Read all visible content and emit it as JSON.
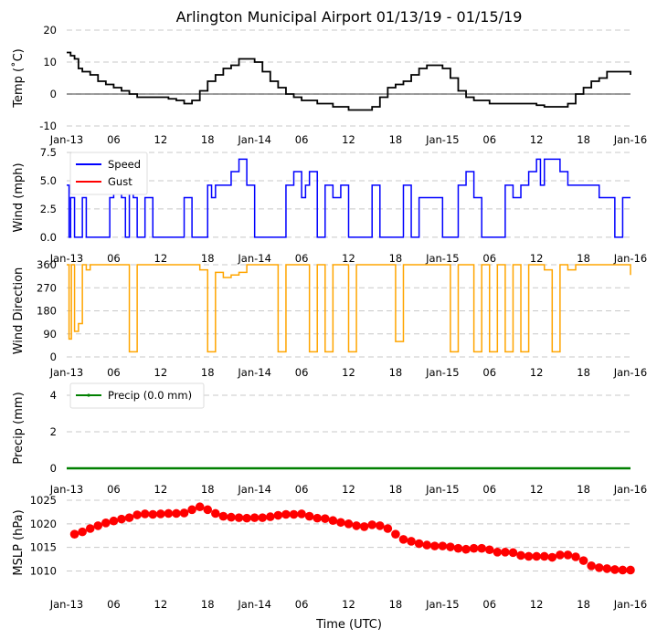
{
  "figure": {
    "title": "Arlington Municipal Airport 01/13/19 - 01/15/19",
    "xlabel": "Time (UTC)",
    "x_ticks": [
      "Jan-13",
      "06",
      "12",
      "18",
      "Jan-14",
      "06",
      "12",
      "18",
      "Jan-15",
      "06",
      "12",
      "18",
      "Jan-16"
    ],
    "x_range_hours": [
      0,
      72
    ]
  },
  "chart_data": [
    {
      "id": "temp",
      "type": "line",
      "ylabel": "Temp ($^\\circ$C)",
      "ylabel_display": "Temp (˚C)",
      "ylim": [
        -10,
        20
      ],
      "yticks": [
        -10,
        0,
        10,
        20
      ],
      "grid": true,
      "zero_line": true,
      "color": "#000000",
      "series": [
        {
          "name": "Temperature",
          "x": [
            0,
            0.5,
            1,
            1.5,
            2,
            3,
            4,
            5,
            6,
            7,
            8,
            9,
            10,
            11,
            12,
            13,
            14,
            15,
            16,
            17,
            18,
            19,
            20,
            21,
            22,
            23,
            24,
            25,
            26,
            27,
            28,
            29,
            30,
            31,
            32,
            33,
            34,
            35,
            36,
            37,
            38,
            39,
            40,
            41,
            42,
            43,
            44,
            45,
            46,
            47,
            48,
            49,
            50,
            51,
            52,
            53,
            54,
            55,
            56,
            57,
            58,
            59,
            60,
            61,
            62,
            63,
            64,
            65,
            66,
            67,
            68,
            69,
            70,
            71,
            72
          ],
          "values": [
            13,
            12,
            11,
            8,
            7,
            6,
            4,
            3,
            2,
            1,
            0,
            -1,
            -1,
            -1,
            -1,
            -1.5,
            -2,
            -3,
            -2,
            1,
            4,
            6,
            8,
            9,
            11,
            11,
            10,
            7,
            4,
            2,
            0,
            -1,
            -2,
            -2,
            -3,
            -3,
            -4,
            -4,
            -5,
            -5,
            -5,
            -4,
            -1,
            2,
            3,
            4,
            6,
            8,
            9,
            9,
            8,
            5,
            1,
            -1,
            -2,
            -2,
            -3,
            -3,
            -3,
            -3,
            -3,
            -3,
            -3.5,
            -4,
            -4,
            -4,
            -3,
            0,
            2,
            4,
            5,
            7,
            7,
            7,
            6
          ]
        }
      ]
    },
    {
      "id": "wind",
      "type": "line",
      "ylabel": "Wind (mph)",
      "ylim": [
        -0.5,
        7.5
      ],
      "yticks": [
        0.0,
        2.5,
        5.0,
        7.5
      ],
      "ytick_labels": [
        "0.0",
        "2.5",
        "5.0",
        "7.5"
      ],
      "grid": true,
      "legend": {
        "placement": "top-left",
        "entries": [
          {
            "label": "Speed",
            "color": "#0000ff"
          },
          {
            "label": "Gust",
            "color": "#ff0000"
          }
        ]
      },
      "series": [
        {
          "name": "Speed",
          "color": "#0000ff",
          "x": [
            0,
            0.3,
            0.5,
            1,
            1.5,
            2,
            2.5,
            3,
            3.5,
            4,
            4.5,
            5,
            5.5,
            6,
            6.5,
            7,
            7.5,
            8,
            8.5,
            9,
            9.5,
            10,
            11,
            12,
            13,
            14,
            15,
            16,
            17,
            18,
            18.5,
            19,
            20,
            21,
            22,
            23,
            24,
            24.5,
            25,
            26,
            27,
            28,
            29,
            30,
            30.5,
            31,
            32,
            33,
            34,
            35,
            36,
            37,
            38,
            39,
            40,
            41,
            42,
            43,
            44,
            45,
            46,
            47,
            48,
            49,
            50,
            51,
            52,
            53,
            54,
            55,
            56,
            57,
            58,
            59,
            60,
            60.5,
            61,
            62,
            63,
            64,
            65,
            66,
            67,
            68,
            69,
            70,
            71,
            72
          ],
          "values": [
            4.6,
            0,
            3.5,
            0,
            0,
            3.5,
            0,
            0,
            0,
            0,
            0,
            0,
            3.5,
            4.6,
            5.8,
            3.5,
            0,
            4.6,
            3.5,
            0,
            0,
            3.5,
            0,
            0,
            0,
            0,
            3.5,
            0,
            0,
            4.6,
            3.5,
            4.6,
            4.6,
            5.8,
            6.9,
            4.6,
            0,
            0,
            0,
            0,
            0,
            4.6,
            5.8,
            3.5,
            4.6,
            5.8,
            0,
            4.6,
            3.5,
            4.6,
            0,
            0,
            0,
            4.6,
            0,
            0,
            0,
            4.6,
            0,
            3.5,
            3.5,
            3.5,
            0,
            0,
            4.6,
            5.8,
            3.5,
            0,
            0,
            0,
            4.6,
            3.5,
            4.6,
            5.8,
            6.9,
            4.6,
            6.9,
            6.9,
            5.8,
            4.6,
            4.6,
            4.6,
            4.6,
            3.5,
            3.5,
            0,
            3.5,
            3.5
          ]
        },
        {
          "name": "Gust",
          "color": "#ff0000",
          "x": [],
          "values": []
        }
      ]
    },
    {
      "id": "direction",
      "type": "line",
      "ylabel": "Wind Direction",
      "ylim": [
        0,
        360
      ],
      "yticks": [
        0,
        90,
        180,
        270,
        360
      ],
      "grid": true,
      "color": "#ffa500",
      "series": [
        {
          "name": "Direction",
          "x": [
            0,
            0.3,
            0.6,
            1,
            1.5,
            2,
            2.5,
            3,
            4,
            5,
            6,
            7,
            8,
            9,
            10,
            11,
            12,
            13,
            14,
            15,
            16,
            17,
            18,
            19,
            20,
            21,
            22,
            23,
            24,
            25,
            26,
            27,
            28,
            29,
            30,
            31,
            32,
            33,
            34,
            35,
            36,
            37,
            38,
            39,
            40,
            41,
            42,
            43,
            44,
            45,
            46,
            47,
            48,
            49,
            50,
            51,
            52,
            53,
            54,
            55,
            56,
            57,
            58,
            59,
            60,
            61,
            62,
            63,
            64,
            65,
            66,
            67,
            68,
            69,
            70,
            71,
            72
          ],
          "values": [
            360,
            70,
            360,
            100,
            130,
            360,
            340,
            360,
            360,
            360,
            360,
            360,
            20,
            360,
            360,
            360,
            360,
            360,
            360,
            360,
            360,
            340,
            20,
            330,
            310,
            320,
            330,
            360,
            360,
            360,
            360,
            20,
            360,
            360,
            360,
            20,
            360,
            20,
            360,
            360,
            20,
            360,
            360,
            360,
            360,
            360,
            60,
            360,
            360,
            360,
            360,
            360,
            360,
            20,
            360,
            360,
            20,
            360,
            20,
            360,
            20,
            360,
            20,
            360,
            360,
            340,
            20,
            360,
            340,
            360,
            360,
            360,
            360,
            360,
            360,
            360,
            320
          ]
        }
      ]
    },
    {
      "id": "precip",
      "type": "line",
      "ylabel": "Precip (mm)",
      "ylim": [
        -0.1,
        4.5
      ],
      "yticks": [
        0,
        2,
        4
      ],
      "grid": true,
      "legend": {
        "placement": "top-left",
        "entries": [
          {
            "label": "Precip (0.0 mm)",
            "color": "#008000"
          }
        ]
      },
      "series": [
        {
          "name": "Precip (0.0 mm)",
          "color": "#008000",
          "x": [
            0,
            6,
            12,
            18,
            24,
            30,
            36,
            42,
            48,
            54,
            60,
            66,
            72
          ],
          "values": [
            0,
            0,
            0,
            0,
            0,
            0,
            0,
            0,
            0,
            0,
            0,
            0,
            0
          ]
        }
      ]
    },
    {
      "id": "mslp",
      "type": "scatter",
      "ylabel": "MSLP (hPa)",
      "ylim": [
        1007,
        1025
      ],
      "yticks": [
        1010,
        1015,
        1020,
        1025
      ],
      "grid": true,
      "color": "#ff0000",
      "series": [
        {
          "name": "MSLP",
          "x": [
            1,
            2,
            3,
            4,
            5,
            6,
            7,
            8,
            9,
            10,
            11,
            12,
            13,
            14,
            15,
            16,
            17,
            18,
            19,
            20,
            21,
            22,
            23,
            24,
            25,
            26,
            27,
            28,
            29,
            30,
            31,
            32,
            33,
            34,
            35,
            36,
            37,
            38,
            39,
            40,
            41,
            42,
            43,
            44,
            45,
            46,
            47,
            48,
            49,
            50,
            51,
            52,
            53,
            54,
            55,
            56,
            57,
            58,
            59,
            60,
            61,
            62,
            63,
            64,
            65,
            66,
            67,
            68,
            69,
            70,
            71,
            72
          ],
          "values": [
            1017.8,
            1018.3,
            1019,
            1019.6,
            1020.2,
            1020.6,
            1021,
            1021.3,
            1021.9,
            1022.1,
            1022,
            1022.1,
            1022.2,
            1022.2,
            1022.3,
            1023,
            1023.6,
            1023,
            1022.2,
            1021.6,
            1021.4,
            1021.3,
            1021.2,
            1021.3,
            1021.3,
            1021.5,
            1021.8,
            1022,
            1022,
            1022.1,
            1021.6,
            1021.2,
            1021.1,
            1020.7,
            1020.3,
            1020,
            1019.6,
            1019.4,
            1019.8,
            1019.6,
            1019,
            1017.8,
            1016.7,
            1016.3,
            1015.8,
            1015.5,
            1015.3,
            1015.3,
            1015.1,
            1014.8,
            1014.6,
            1014.8,
            1014.8,
            1014.5,
            1014.0,
            1014.0,
            1013.9,
            1013.3,
            1013.1,
            1013.1,
            1013.1,
            1012.9,
            1013.4,
            1013.4,
            1013.0,
            1012.2,
            1011.1,
            1010.7,
            1010.5,
            1010.3,
            1010.2,
            1010.2
          ]
        }
      ]
    }
  ]
}
